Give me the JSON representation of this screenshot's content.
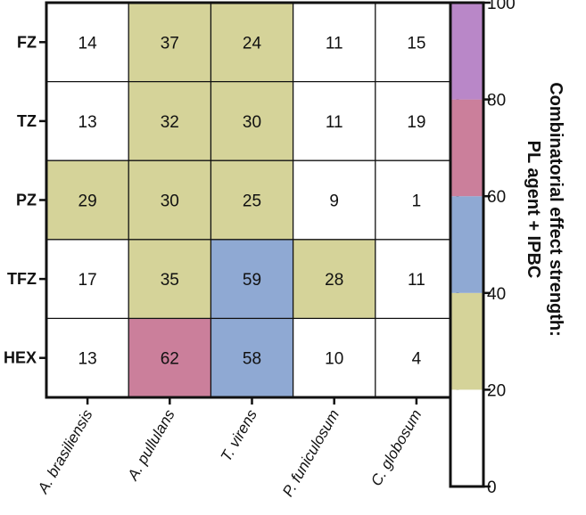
{
  "chart_data": {
    "type": "heatmap",
    "rows": [
      "FZ",
      "TZ",
      "PZ",
      "TFZ",
      "HEX"
    ],
    "columns": [
      "A. brasiliensis",
      "A. pullulans",
      "T. virens",
      "P. funiculosum",
      "C. globosum"
    ],
    "values": [
      [
        14,
        37,
        24,
        11,
        15
      ],
      [
        13,
        32,
        30,
        11,
        19
      ],
      [
        29,
        30,
        25,
        9,
        1
      ],
      [
        17,
        35,
        59,
        28,
        11
      ],
      [
        13,
        62,
        58,
        10,
        4
      ]
    ],
    "colorbar": {
      "title_line1": "Combinatorial effect strength:",
      "title_line2": "PL agent + IPBC",
      "range": [
        0,
        100
      ],
      "ticks": [
        "0",
        "20",
        "40",
        "60",
        "80",
        "100"
      ],
      "bins": [
        {
          "from": 0,
          "to": 20,
          "color": "#ffffff"
        },
        {
          "from": 20,
          "to": 40,
          "color": "#d5d399"
        },
        {
          "from": 40,
          "to": 60,
          "color": "#8fa9d3"
        },
        {
          "from": 60,
          "to": 80,
          "color": "#cb7f9b"
        },
        {
          "from": 80,
          "to": 100,
          "color": "#b987c8"
        }
      ]
    },
    "grid": true
  }
}
